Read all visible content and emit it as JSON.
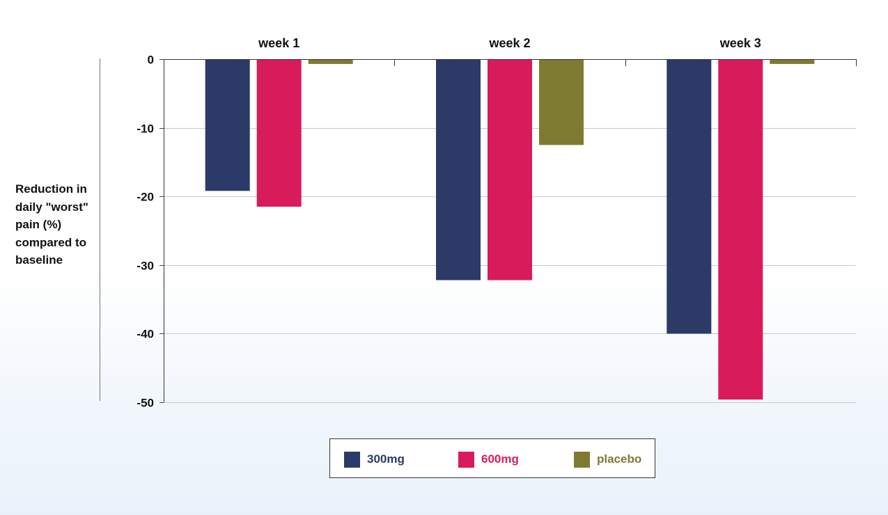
{
  "chart_data": {
    "type": "bar",
    "orientation": "vertical, bars extend downward from 0",
    "categories": [
      "week 1",
      "week 2",
      "week 3"
    ],
    "category_labels_position": "top",
    "series": [
      {
        "name": "300mg",
        "color": "#2b3a67",
        "values": [
          -19.2,
          -32.2,
          -40.0
        ]
      },
      {
        "name": "600mg",
        "color": "#d81b5b",
        "values": [
          -21.5,
          -32.2,
          -49.6
        ]
      },
      {
        "name": "placebo",
        "color": "#7f7a31",
        "values": [
          -0.7,
          -12.5,
          -0.7
        ]
      }
    ],
    "ylabel": "Reduction in daily \"worst\" pain (%) compared to baseline",
    "ylabel_lines": [
      "Reduction in",
      "daily \"worst\"",
      "pain (%)",
      "compared to",
      "baseline"
    ],
    "ylim": [
      -50,
      0
    ],
    "yticks": [
      0,
      -10,
      -20,
      -30,
      -40,
      -50
    ],
    "ytick_labels": [
      "0",
      "-10",
      "-20",
      "-30",
      "-40",
      "-50"
    ],
    "grid": true,
    "legend_position": "bottom-center"
  }
}
